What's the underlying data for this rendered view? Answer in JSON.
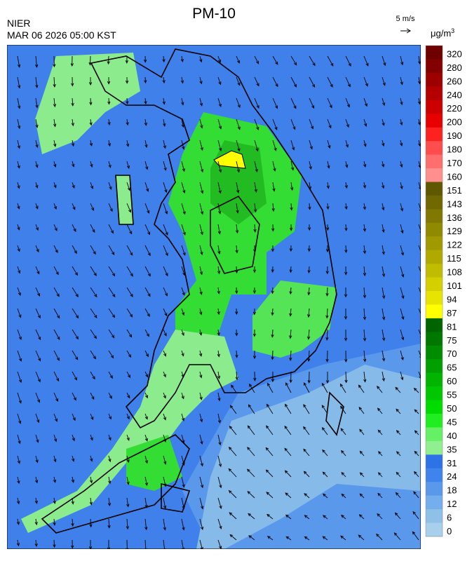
{
  "header": {
    "title": "PM-10",
    "agency": "NIER",
    "datetime": "MAR 06 2026 05:00 KST",
    "wind_reference": "5 m/s"
  },
  "legend": {
    "unit": "μg/m",
    "unit_power": "3",
    "levels": [
      {
        "label": 320,
        "color": "#6e0000"
      },
      {
        "label": 280,
        "color": "#840000"
      },
      {
        "label": 260,
        "color": "#9c0000"
      },
      {
        "label": 240,
        "color": "#b40000"
      },
      {
        "label": 220,
        "color": "#cc0000"
      },
      {
        "label": 200,
        "color": "#e80000"
      },
      {
        "label": 190,
        "color": "#ff2020"
      },
      {
        "label": 180,
        "color": "#ff4c4c"
      },
      {
        "label": 170,
        "color": "#ff6e6e"
      },
      {
        "label": 160,
        "color": "#ff8e8e"
      },
      {
        "label": 151,
        "color": "#605800"
      },
      {
        "label": 143,
        "color": "#706800"
      },
      {
        "label": 136,
        "color": "#807800"
      },
      {
        "label": 129,
        "color": "#908a00"
      },
      {
        "label": 122,
        "color": "#a09a00"
      },
      {
        "label": 115,
        "color": "#b0aa00"
      },
      {
        "label": 108,
        "color": "#c0bc00"
      },
      {
        "label": 101,
        "color": "#d4d000"
      },
      {
        "label": 94,
        "color": "#e6e400"
      },
      {
        "label": 87,
        "color": "#ffff00"
      },
      {
        "label": 81,
        "color": "#006400"
      },
      {
        "label": 75,
        "color": "#007800"
      },
      {
        "label": 70,
        "color": "#008c00"
      },
      {
        "label": 65,
        "color": "#00a000"
      },
      {
        "label": 60,
        "color": "#00b400"
      },
      {
        "label": 55,
        "color": "#00c800"
      },
      {
        "label": 50,
        "color": "#00dc00"
      },
      {
        "label": 45,
        "color": "#20ee20"
      },
      {
        "label": 40,
        "color": "#66f066"
      },
      {
        "label": 35,
        "color": "#90f090"
      },
      {
        "label": 31,
        "color": "#2e72e8"
      },
      {
        "label": 24,
        "color": "#3f84ec"
      },
      {
        "label": 18,
        "color": "#5a98ec"
      },
      {
        "label": 12,
        "color": "#74aeec"
      },
      {
        "label": 6,
        "color": "#8ec0e8"
      },
      {
        "label": 0,
        "color": "#a8d0ec"
      }
    ]
  }
}
